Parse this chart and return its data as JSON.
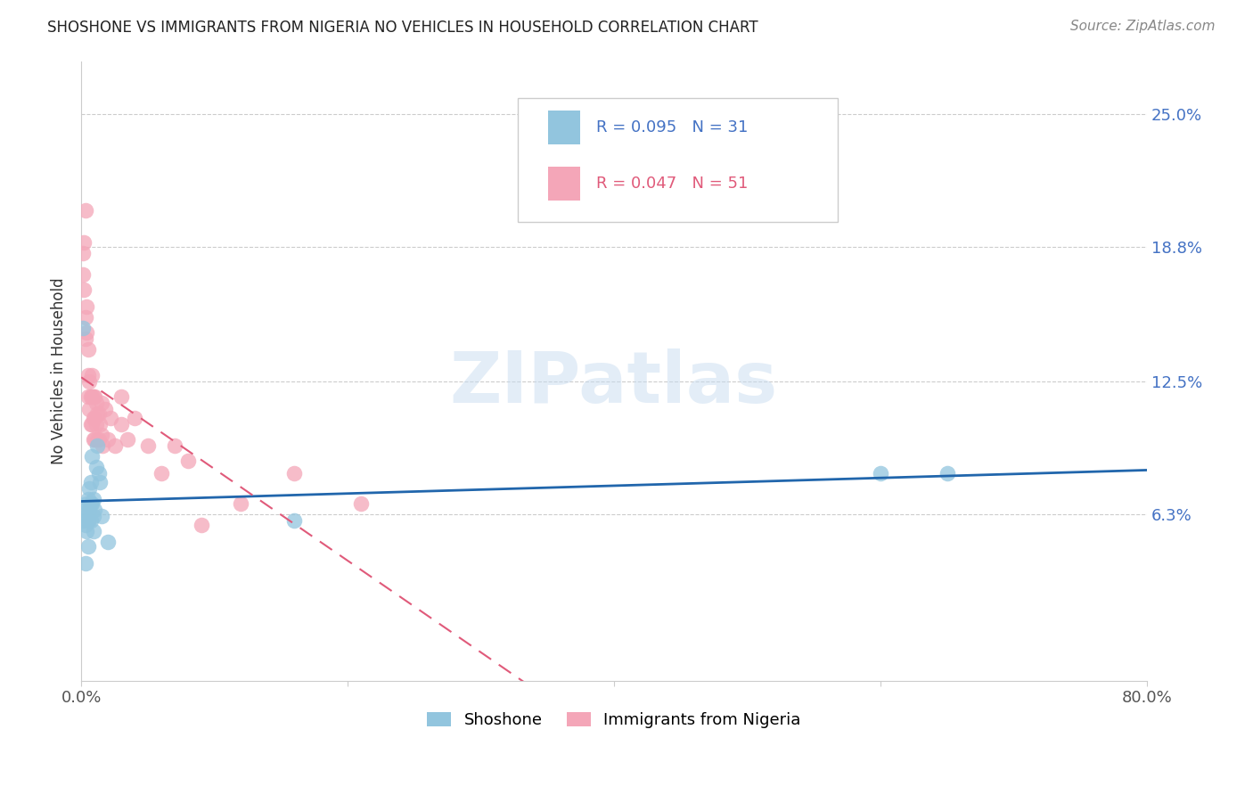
{
  "title": "SHOSHONE VS IMMIGRANTS FROM NIGERIA NO VEHICLES IN HOUSEHOLD CORRELATION CHART",
  "source": "Source: ZipAtlas.com",
  "ylabel": "No Vehicles in Household",
  "ytick_labels": [
    "6.3%",
    "12.5%",
    "18.8%",
    "25.0%"
  ],
  "ytick_values": [
    0.063,
    0.125,
    0.188,
    0.25
  ],
  "xlim": [
    0.0,
    0.8
  ],
  "ylim": [
    -0.015,
    0.275
  ],
  "legend_r_blue": "R = 0.095",
  "legend_n_blue": "N = 31",
  "legend_r_pink": "R = 0.047",
  "legend_n_pink": "N = 51",
  "label_blue": "Shoshone",
  "label_pink": "Immigrants from Nigeria",
  "color_blue": "#92c5de",
  "color_pink": "#f4a6b8",
  "line_color_blue": "#2166ac",
  "line_color_pink": "#e05a7a",
  "background_color": "#ffffff",
  "shoshone_x": [
    0.001,
    0.002,
    0.002,
    0.003,
    0.003,
    0.004,
    0.004,
    0.004,
    0.005,
    0.005,
    0.005,
    0.006,
    0.006,
    0.007,
    0.007,
    0.007,
    0.008,
    0.008,
    0.009,
    0.009,
    0.009,
    0.01,
    0.011,
    0.012,
    0.013,
    0.014,
    0.015,
    0.02,
    0.16,
    0.6,
    0.65
  ],
  "shoshone_y": [
    0.15,
    0.065,
    0.06,
    0.058,
    0.04,
    0.068,
    0.062,
    0.055,
    0.07,
    0.06,
    0.048,
    0.075,
    0.065,
    0.078,
    0.068,
    0.06,
    0.09,
    0.068,
    0.07,
    0.062,
    0.055,
    0.065,
    0.085,
    0.095,
    0.082,
    0.078,
    0.062,
    0.05,
    0.06,
    0.082,
    0.082
  ],
  "nigeria_x": [
    0.001,
    0.001,
    0.002,
    0.002,
    0.003,
    0.003,
    0.003,
    0.004,
    0.004,
    0.005,
    0.005,
    0.005,
    0.006,
    0.006,
    0.007,
    0.007,
    0.008,
    0.008,
    0.008,
    0.009,
    0.009,
    0.009,
    0.01,
    0.01,
    0.01,
    0.011,
    0.011,
    0.012,
    0.012,
    0.013,
    0.013,
    0.014,
    0.015,
    0.015,
    0.016,
    0.018,
    0.02,
    0.022,
    0.025,
    0.03,
    0.03,
    0.035,
    0.04,
    0.05,
    0.06,
    0.07,
    0.08,
    0.09,
    0.12,
    0.16,
    0.21
  ],
  "nigeria_y": [
    0.185,
    0.175,
    0.19,
    0.168,
    0.205,
    0.155,
    0.145,
    0.16,
    0.148,
    0.14,
    0.128,
    0.118,
    0.125,
    0.112,
    0.118,
    0.105,
    0.128,
    0.118,
    0.105,
    0.118,
    0.108,
    0.098,
    0.118,
    0.108,
    0.098,
    0.115,
    0.105,
    0.11,
    0.098,
    0.11,
    0.098,
    0.105,
    0.115,
    0.1,
    0.095,
    0.112,
    0.098,
    0.108,
    0.095,
    0.105,
    0.118,
    0.098,
    0.108,
    0.095,
    0.082,
    0.095,
    0.088,
    0.058,
    0.068,
    0.082,
    0.068
  ]
}
